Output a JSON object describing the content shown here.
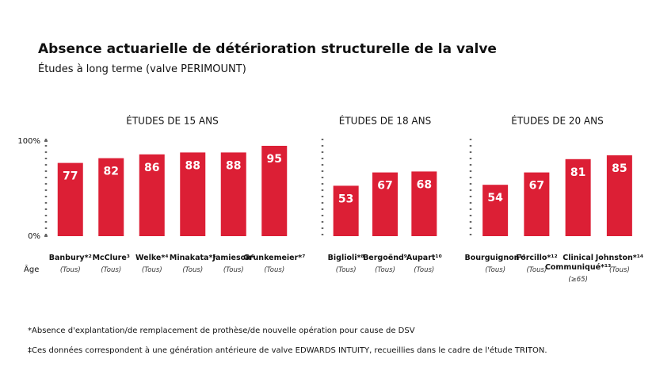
{
  "title": "Absence actuarielle de détérioration structurelle de la valve",
  "subtitle": "Études à long terme (valve PERIMOUNT)",
  "age_label": "Âge",
  "footnotes": [
    "*Absence d'explantation/de remplacement de prothèse/de nouvelle opération pour cause de DSV",
    "‡Ces données correspondent à une génération antérieure de valve EDWARDS INTUITY, recueillies dans le cadre de l'étude TRITON."
  ],
  "chart_data": [
    {
      "type": "bar",
      "title": "ÉTUDES DE 15 ANS",
      "color": "#dc1f35",
      "categories": [
        "Banbury*²",
        "McClure³",
        "Welke*⁴",
        "Minakata*⁵",
        "Jamieson⁶",
        "Grunkemeier*⁷"
      ],
      "ages": [
        "(Tous)",
        "(Tous)",
        "(Tous)",
        "(Tous)",
        "(Tous)",
        "(Tous)"
      ],
      "values": [
        77,
        82,
        86,
        88,
        88,
        95
      ],
      "ylim": [
        0,
        100
      ],
      "yticks": [
        {
          "value": 0,
          "label": "0%"
        },
        {
          "value": 100,
          "label": "100%"
        }
      ]
    },
    {
      "type": "bar",
      "title": "ÉTUDES DE 18 ANS",
      "color": "#dc1f35",
      "categories": [
        "Biglioli*⁸",
        "Bergoënd⁹",
        "Aupart¹⁰"
      ],
      "ages": [
        "(Tous)",
        "(Tous)",
        "(Tous)"
      ],
      "values": [
        53,
        67,
        68
      ],
      "ylim": [
        0,
        100
      ]
    },
    {
      "type": "bar",
      "title": "ÉTUDES DE 20 ANS",
      "color": "#dc1f35",
      "categories": [
        "Bourguignon¹¹",
        "Forcillo*¹²",
        "Clinical Communiqué*¹³",
        "Johnston*¹⁴"
      ],
      "ages": [
        "(Tous)",
        "(Tous)",
        "(≥65)",
        "(Tous)"
      ],
      "values": [
        54,
        67,
        81,
        85
      ],
      "ylim": [
        0,
        100
      ]
    }
  ]
}
